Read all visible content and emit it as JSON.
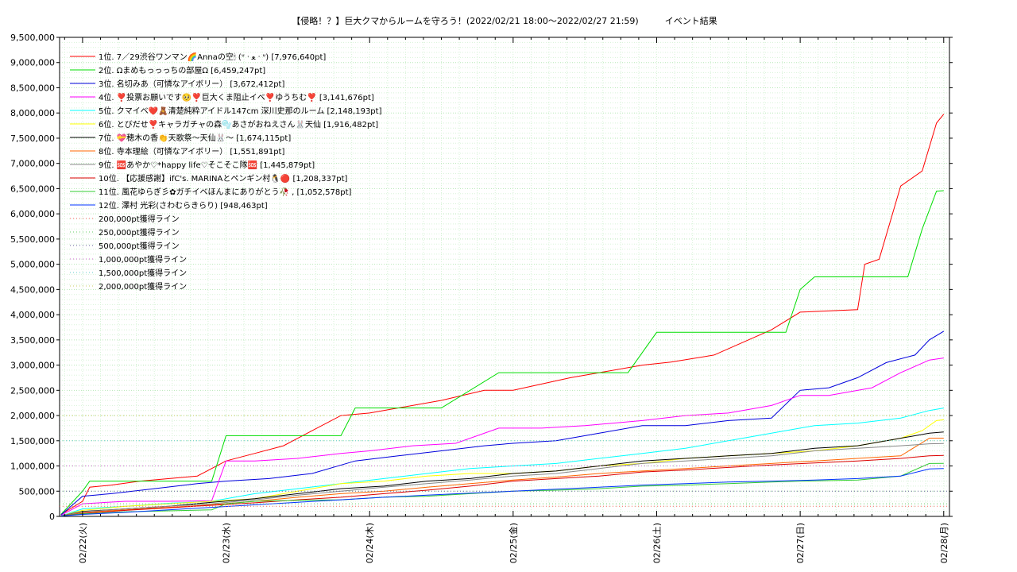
{
  "chart_data": {
    "type": "line",
    "title": "【侵略！？】巨大クマからルームを守ろう！(2022/02/21 18:00～2022/02/27 21:59)　　　イベント結果",
    "xlabel": "",
    "ylabel": "",
    "ylim": [
      0,
      9500000
    ],
    "x_ticks": [
      "02/22(火)",
      "02/23(水)",
      "02/24(木)",
      "02/25(金)",
      "02/26(土)",
      "02/27(日)",
      "02/28(月)"
    ],
    "xlim_days": [
      -0.16,
      6.04
    ],
    "y_ticks": [
      0,
      500000,
      1000000,
      1500000,
      2000000,
      2500000,
      3000000,
      3500000,
      4000000,
      4500000,
      5000000,
      5500000,
      6000000,
      6500000,
      7000000,
      7500000,
      8000000,
      8500000,
      9000000,
      9500000
    ],
    "y_tick_labels": [
      "0",
      "500,000",
      "1,000,000",
      "1,500,000",
      "2,000,000",
      "2,500,000",
      "3,000,000",
      "3,500,000",
      "4,000,000",
      "4,500,000",
      "5,000,000",
      "5,500,000",
      "6,000,000",
      "6,500,000",
      "7,000,000",
      "7,500,000",
      "8,000,000",
      "8,500,000",
      "9,000,000",
      "9,500,000"
    ],
    "grid": true,
    "legend_position": "top-left",
    "series": [
      {
        "name": "1位. 7／29渋谷ワンマン🌈Annaの空🕯︎ (⁠ᐡ⁠ ⁠ᐧ ⁠ﻌ⁠ ⁠ᐧ⁠ ⁠ᐡ⁠) [7,976,640pt]",
        "color": "#ff0000",
        "x": [
          -0.15,
          0,
          0.05,
          0.2,
          0.4,
          0.8,
          1.0,
          1.2,
          1.4,
          1.6,
          1.8,
          2.0,
          2.2,
          2.5,
          2.8,
          3.0,
          3.4,
          3.6,
          3.9,
          4.1,
          4.4,
          4.8,
          5.0,
          5.4,
          5.45,
          5.55,
          5.7,
          5.85,
          5.95,
          6.0
        ],
        "y": [
          40000,
          300000,
          580000,
          620000,
          700000,
          800000,
          1100000,
          1250000,
          1400000,
          1700000,
          2000000,
          2050000,
          2150000,
          2300000,
          2500000,
          2500000,
          2750000,
          2850000,
          3000000,
          3060000,
          3200000,
          3700000,
          4050000,
          4100000,
          5000000,
          5100000,
          6550000,
          6850000,
          7800000,
          7976640
        ]
      },
      {
        "name": "2位. Ωまめもっっっちの部屋Ω [6,459,247pt]",
        "color": "#00dd00",
        "x": [
          -0.15,
          0,
          0.05,
          0.3,
          0.6,
          0.9,
          1.0,
          1.2,
          1.5,
          1.8,
          1.9,
          2.2,
          2.5,
          2.9,
          3.2,
          3.5,
          3.8,
          4.0,
          4.2,
          4.6,
          4.9,
          5.0,
          5.1,
          5.5,
          5.75,
          5.85,
          5.95,
          6.0
        ],
        "y": [
          40000,
          500000,
          700000,
          700000,
          700000,
          700000,
          1600000,
          1600000,
          1600000,
          1600000,
          2150000,
          2150000,
          2150000,
          2850000,
          2850000,
          2850000,
          2850000,
          3650000,
          3650000,
          3650000,
          3650000,
          4500000,
          4750000,
          4750000,
          4750000,
          5700000,
          6450000,
          6459247
        ]
      },
      {
        "name": "3位. 名切みあ（可憐なアイボリー） [3,672,412pt]",
        "color": "#0000dd",
        "x": [
          -0.15,
          0,
          0.2,
          0.5,
          0.8,
          1.0,
          1.3,
          1.6,
          1.9,
          2.2,
          2.5,
          2.8,
          3.0,
          3.3,
          3.6,
          3.9,
          4.2,
          4.5,
          4.8,
          5.0,
          5.2,
          5.4,
          5.6,
          5.8,
          5.9,
          6.0
        ],
        "y": [
          30000,
          400000,
          450000,
          550000,
          650000,
          700000,
          750000,
          850000,
          1100000,
          1200000,
          1300000,
          1400000,
          1450000,
          1500000,
          1650000,
          1800000,
          1800000,
          1900000,
          1950000,
          2500000,
          2550000,
          2750000,
          3050000,
          3200000,
          3500000,
          3672412
        ]
      },
      {
        "name": "4位. ❣️投票お願いです🥺❣️巨大くま阻止イベ❣️ゆうちむ❣️ [3,141,676pt]",
        "color": "#ff00ff",
        "x": [
          -0.15,
          0,
          0.3,
          0.6,
          0.9,
          1.0,
          1.2,
          1.5,
          1.8,
          2.0,
          2.3,
          2.6,
          2.9,
          3.2,
          3.5,
          3.9,
          4.2,
          4.5,
          4.8,
          5.0,
          5.2,
          5.5,
          5.7,
          5.9,
          6.0
        ],
        "y": [
          20000,
          250000,
          300000,
          300000,
          310000,
          1100000,
          1100000,
          1150000,
          1250000,
          1300000,
          1400000,
          1450000,
          1750000,
          1750000,
          1800000,
          1900000,
          2000000,
          2050000,
          2200000,
          2400000,
          2400000,
          2550000,
          2850000,
          3100000,
          3141676
        ]
      },
      {
        "name": "5位. クマイベ❤️🧸清楚純粋アイドル147cm 深川史那のルーム [2,148,193pt]",
        "color": "#00ffff",
        "x": [
          -0.15,
          0,
          0.3,
          0.6,
          0.9,
          1.2,
          1.5,
          1.8,
          2.1,
          2.4,
          2.7,
          3.0,
          3.3,
          3.6,
          3.9,
          4.2,
          4.5,
          4.8,
          5.1,
          5.4,
          5.7,
          5.9,
          6.0
        ],
        "y": [
          10000,
          150000,
          200000,
          260000,
          300000,
          450000,
          550000,
          650000,
          750000,
          850000,
          950000,
          1000000,
          1050000,
          1150000,
          1250000,
          1350000,
          1500000,
          1650000,
          1800000,
          1850000,
          1950000,
          2100000,
          2148193
        ]
      },
      {
        "name": "6位. とびだせ❣️キャラガチャの森🫧あさがおねえさん🐰天仙 [1,916,482pt]",
        "color": "#ffff00",
        "x": [
          -0.15,
          0,
          0.3,
          0.6,
          0.9,
          1.2,
          1.5,
          1.8,
          2.1,
          2.4,
          2.7,
          3.0,
          3.3,
          3.6,
          3.9,
          4.2,
          4.5,
          4.8,
          5.1,
          5.4,
          5.7,
          5.85,
          5.95,
          6.0
        ],
        "y": [
          10000,
          120000,
          200000,
          250000,
          300000,
          350000,
          500000,
          650000,
          700000,
          800000,
          850000,
          850000,
          900000,
          1000000,
          1050000,
          1150000,
          1200000,
          1250000,
          1300000,
          1400000,
          1550000,
          1700000,
          1900000,
          1916482
        ]
      },
      {
        "name": "7位. 💝穂木の香👏天歌祭〜天仙🐰〜 [1,674,115pt]",
        "color": "#000000",
        "x": [
          -0.15,
          0,
          0.3,
          0.6,
          0.9,
          1.2,
          1.5,
          1.8,
          2.1,
          2.4,
          2.7,
          3.0,
          3.3,
          3.6,
          3.9,
          4.2,
          4.5,
          4.8,
          5.1,
          5.4,
          5.7,
          5.9,
          6.0
        ],
        "y": [
          10000,
          100000,
          150000,
          200000,
          280000,
          350000,
          450000,
          550000,
          600000,
          700000,
          750000,
          850000,
          900000,
          1000000,
          1100000,
          1150000,
          1200000,
          1250000,
          1350000,
          1400000,
          1550000,
          1650000,
          1674115
        ]
      },
      {
        "name": "8位. 寺本理絵（可憐なアイボリー） [1,551,891pt]",
        "color": "#ff6600",
        "x": [
          -0.15,
          0,
          0.3,
          0.6,
          0.9,
          1.2,
          1.5,
          1.8,
          2.1,
          2.4,
          2.7,
          3.0,
          3.3,
          3.6,
          3.9,
          4.2,
          4.5,
          4.8,
          5.1,
          5.4,
          5.7,
          5.9,
          6.0
        ],
        "y": [
          10000,
          80000,
          130000,
          180000,
          230000,
          300000,
          380000,
          450000,
          500000,
          580000,
          650000,
          720000,
          780000,
          850000,
          900000,
          950000,
          1000000,
          1050000,
          1100000,
          1150000,
          1200000,
          1550000,
          1551891
        ]
      },
      {
        "name": "9位. 🆘あやか♡*happy life♡そこそこ隊🆘 [1,445,879pt]",
        "color": "#888888",
        "x": [
          -0.15,
          0,
          0.3,
          0.6,
          0.9,
          1.2,
          1.5,
          1.8,
          2.1,
          2.4,
          2.7,
          3.0,
          3.3,
          3.6,
          3.9,
          4.2,
          4.5,
          4.8,
          5.1,
          5.4,
          5.7,
          5.9,
          6.0
        ],
        "y": [
          10000,
          90000,
          150000,
          200000,
          250000,
          330000,
          420000,
          500000,
          580000,
          650000,
          720000,
          800000,
          850000,
          950000,
          1050000,
          1100000,
          1150000,
          1200000,
          1300000,
          1350000,
          1400000,
          1440000,
          1445879
        ]
      },
      {
        "name": "10位. 【応援感謝】ifC's. MARINAとペンギン村🐧🔴 [1,208,337pt]",
        "color": "#dd0000",
        "x": [
          -0.15,
          0,
          0.3,
          0.6,
          0.9,
          1.2,
          1.5,
          1.8,
          2.1,
          2.4,
          2.7,
          3.0,
          3.3,
          3.6,
          3.9,
          4.2,
          4.5,
          4.8,
          5.1,
          5.4,
          5.7,
          5.9,
          6.0
        ],
        "y": [
          10000,
          60000,
          120000,
          170000,
          220000,
          270000,
          330000,
          380000,
          450000,
          520000,
          600000,
          700000,
          750000,
          800000,
          880000,
          920000,
          970000,
          1020000,
          1060000,
          1100000,
          1150000,
          1200000,
          1208337
        ]
      },
      {
        "name": "11位. 風花ゆらぎ彡✿ガチイベほんまにありがとう🥀 , [1,052,578pt]",
        "color": "#33cc33",
        "x": [
          -0.15,
          0,
          0.3,
          0.6,
          0.9,
          1.0,
          1.2,
          1.5,
          1.8,
          2.1,
          2.4,
          2.7,
          3.0,
          3.3,
          3.6,
          3.9,
          4.2,
          4.5,
          4.8,
          5.0,
          5.4,
          5.7,
          5.9,
          6.0
        ],
        "y": [
          10000,
          50000,
          90000,
          110000,
          130000,
          250000,
          300000,
          320000,
          330000,
          380000,
          400000,
          450000,
          500000,
          520000,
          550000,
          600000,
          620000,
          650000,
          680000,
          700000,
          720000,
          800000,
          1050000,
          1052578
        ]
      },
      {
        "name": "12位. 澤村 光彩(さわむらきらり) [948,463pt]",
        "color": "#0033ff",
        "x": [
          -0.15,
          0,
          0.3,
          0.6,
          0.9,
          1.2,
          1.5,
          1.8,
          2.1,
          2.4,
          2.7,
          3.0,
          3.3,
          3.6,
          3.9,
          4.2,
          4.5,
          4.8,
          5.1,
          5.4,
          5.7,
          5.9,
          6.0
        ],
        "y": [
          10000,
          40000,
          80000,
          130000,
          180000,
          230000,
          280000,
          330000,
          380000,
          420000,
          460000,
          500000,
          540000,
          580000,
          620000,
          650000,
          680000,
          700000,
          720000,
          750000,
          800000,
          940000,
          948463
        ]
      },
      {
        "name": "200,000pt獲得ライン",
        "color": "#ff6666",
        "dotted": true,
        "x": [
          -0.16,
          6.04
        ],
        "y": [
          200000,
          200000
        ]
      },
      {
        "name": "250,000pt獲得ライン",
        "color": "#66cc66",
        "dotted": true,
        "x": [
          -0.16,
          6.04
        ],
        "y": [
          250000,
          250000
        ]
      },
      {
        "name": "500,000pt獲得ライン",
        "color": "#666699",
        "dotted": true,
        "x": [
          -0.16,
          6.04
        ],
        "y": [
          500000,
          500000
        ]
      },
      {
        "name": "1,000,000pt獲得ライン",
        "color": "#cc66cc",
        "dotted": true,
        "x": [
          -0.16,
          6.04
        ],
        "y": [
          1000000,
          1000000
        ]
      },
      {
        "name": "1,500,000pt獲得ライン",
        "color": "#66cccc",
        "dotted": true,
        "x": [
          -0.16,
          6.04
        ],
        "y": [
          1500000,
          1500000
        ]
      },
      {
        "name": "2,000,000pt獲得ライン",
        "color": "#cccc66",
        "dotted": true,
        "x": [
          -0.16,
          6.04
        ],
        "y": [
          2000000,
          2000000
        ]
      }
    ]
  }
}
